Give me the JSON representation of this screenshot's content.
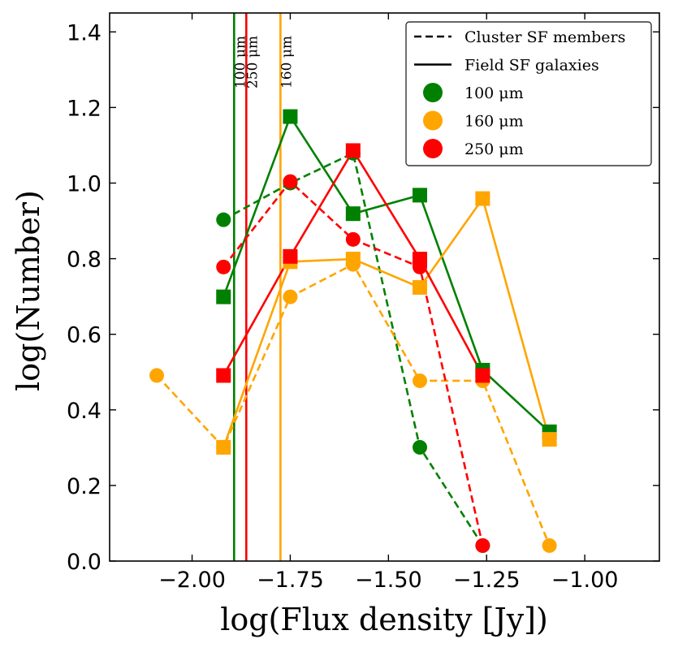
{
  "chart_data": {
    "type": "line",
    "xlabel": "log(Flux density [Jy])",
    "ylabel": "log(Number)",
    "xlim": [
      -2.21,
      -0.81
    ],
    "ylim": [
      0.0,
      1.45
    ],
    "xticks": [
      -2.0,
      -1.75,
      -1.5,
      -1.25,
      -1.0
    ],
    "xtick_labels": [
      "−2.00",
      "−1.75",
      "−1.50",
      "−1.25",
      "−1.00"
    ],
    "yticks": [
      0.0,
      0.2,
      0.4,
      0.6,
      0.8,
      1.0,
      1.2,
      1.4
    ],
    "ytick_labels": [
      "0.0",
      "0.2",
      "0.4",
      "0.6",
      "0.8",
      "1.0",
      "1.2",
      "1.4"
    ],
    "colors": {
      "100": "#008000",
      "160": "#FFA500",
      "250": "#FF0000"
    },
    "series": [
      {
        "name": "100 μm cluster",
        "band": "100",
        "style": "dashed",
        "marker": "circle",
        "x": [
          -1.92,
          -1.75,
          -1.59,
          -1.42,
          -1.26
        ],
        "y": [
          0.903,
          1.0,
          1.079,
          0.301,
          0.041
        ]
      },
      {
        "name": "100 μm field",
        "band": "100",
        "style": "solid",
        "marker": "square",
        "x": [
          -1.92,
          -1.75,
          -1.59,
          -1.42,
          -1.26,
          -1.09
        ],
        "y": [
          0.699,
          1.176,
          0.919,
          0.968,
          0.505,
          0.342
        ]
      },
      {
        "name": "160 μm cluster",
        "band": "160",
        "style": "dashed",
        "marker": "circle",
        "x": [
          -2.09,
          -1.92,
          -1.75,
          -1.59,
          -1.42,
          -1.26,
          -1.09
        ],
        "y": [
          0.491,
          0.301,
          0.699,
          0.785,
          0.477,
          0.477,
          0.041
        ]
      },
      {
        "name": "160 μm field",
        "band": "160",
        "style": "solid",
        "marker": "square",
        "x": [
          -1.92,
          -1.75,
          -1.59,
          -1.42,
          -1.26,
          -1.09
        ],
        "y": [
          0.301,
          0.792,
          0.799,
          0.724,
          0.959,
          0.322
        ]
      },
      {
        "name": "250 μm cluster",
        "band": "250",
        "style": "dashed",
        "marker": "circle",
        "x": [
          -1.92,
          -1.75,
          -1.59,
          -1.42,
          -1.26
        ],
        "y": [
          0.778,
          1.004,
          0.851,
          0.778,
          0.041
        ]
      },
      {
        "name": "250 μm field",
        "band": "250",
        "style": "solid",
        "marker": "square",
        "x": [
          -1.92,
          -1.75,
          -1.59,
          -1.42,
          -1.26
        ],
        "y": [
          0.491,
          0.806,
          1.086,
          0.799,
          0.491
        ]
      }
    ],
    "vlines": [
      {
        "x": -1.893,
        "band": "100",
        "label": "100 μm"
      },
      {
        "x": -1.862,
        "band": "250",
        "label": "250 μm"
      },
      {
        "x": -1.775,
        "band": "160",
        "label": "160 μm"
      }
    ],
    "legend": {
      "position": "top-right",
      "entries": [
        {
          "label": "Cluster SF members",
          "kind": "line-dashed"
        },
        {
          "label": "Field SF galaxies",
          "kind": "line-solid"
        },
        {
          "label": "100 μm",
          "kind": "marker",
          "band": "100"
        },
        {
          "label": "160 μm",
          "kind": "marker",
          "band": "160"
        },
        {
          "label": "250 μm",
          "kind": "marker",
          "band": "250"
        }
      ]
    }
  }
}
